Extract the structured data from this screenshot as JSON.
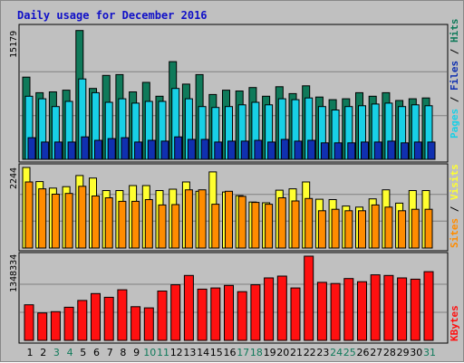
{
  "title": "Daily usage for December 2016",
  "colors": {
    "hits": "#0f7a5a",
    "files": "#18d0e6",
    "pages": "#1030b0",
    "visits": "#ffff30",
    "sites": "#ff8c00",
    "kbytes": "#ff1010",
    "weekend": "#0f7a5a",
    "weekday": "#000000",
    "title": "#1010c8"
  },
  "panels": {
    "top": {
      "max_label": "15179",
      "label_parts": [
        "Pages",
        " / ",
        "Files",
        " / ",
        "Hits"
      ]
    },
    "middle": {
      "max_label": "2244",
      "label_parts": [
        "Sites",
        " / ",
        "Visits"
      ]
    },
    "bottom": {
      "max_label": "1348334",
      "label_parts": [
        "KBytes"
      ]
    }
  },
  "chart_data": {
    "type": "bar",
    "title": "Daily usage for December 2016",
    "categories": [
      "1",
      "2",
      "3",
      "4",
      "5",
      "6",
      "7",
      "8",
      "9",
      "10",
      "11",
      "12",
      "13",
      "14",
      "15",
      "16",
      "17",
      "18",
      "19",
      "20",
      "21",
      "22",
      "23",
      "24",
      "25",
      "26",
      "27",
      "28",
      "29",
      "30",
      "31"
    ],
    "weekend_days": [
      "3",
      "4",
      "10",
      "11",
      "17",
      "18",
      "24",
      "25",
      "31"
    ],
    "panels": [
      {
        "name": "Hits / Files / Pages",
        "y_max": 15179,
        "series": [
          {
            "name": "Hits",
            "values": [
              9500,
              7700,
              7800,
              8000,
              14900,
              8200,
              9700,
              9800,
              7800,
              8900,
              7300,
              11300,
              8700,
              9800,
              7500,
              8000,
              7900,
              8300,
              7300,
              8400,
              7600,
              8500,
              7200,
              6900,
              7000,
              7700,
              7300,
              7700,
              6800,
              7000,
              7100
            ]
          },
          {
            "name": "Files",
            "values": [
              7300,
              7000,
              6100,
              6700,
              9300,
              7700,
              6600,
              7000,
              6500,
              6700,
              6700,
              8200,
              7000,
              6100,
              6000,
              6100,
              6300,
              6600,
              6300,
              7000,
              6900,
              7100,
              6100,
              5700,
              6100,
              6200,
              6400,
              6500,
              6100,
              6300,
              6200
            ]
          },
          {
            "name": "Pages",
            "values": [
              2500,
              2000,
              2000,
              2000,
              2600,
              2200,
              2400,
              2500,
              2000,
              2200,
              2100,
              2600,
              2300,
              2300,
              2000,
              2100,
              2100,
              2200,
              2000,
              2300,
              2100,
              2200,
              1900,
              1900,
              1900,
              2000,
              2000,
              2100,
              1900,
              2000,
              2000
            ]
          }
        ]
      },
      {
        "name": "Visits / Sites",
        "y_max": 2244,
        "series": [
          {
            "name": "Visits",
            "values": [
              2244,
              1850,
              1670,
              1710,
              2020,
              1950,
              1600,
              1600,
              1740,
              1740,
              1600,
              1640,
              1840,
              1580,
              2120,
              1560,
              1460,
              1280,
              1260,
              1610,
              1650,
              1840,
              1360,
              1350,
              1170,
              1140,
              1370,
              1620,
              1250,
              1600,
              1600
            ]
          },
          {
            "name": "Sites",
            "values": [
              1840,
              1650,
              1500,
              1520,
              1720,
              1450,
              1400,
              1300,
              1300,
              1350,
              1200,
              1210,
              1620,
              1620,
              1220,
              1580,
              1440,
              1270,
              1220,
              1400,
              1310,
              1380,
              1040,
              1080,
              1040,
              1040,
              1200,
              1140,
              1040,
              1080,
              1080
            ]
          }
        ]
      },
      {
        "name": "KBytes",
        "y_max": 1348334,
        "series": [
          {
            "name": "KBytes",
            "values": [
              570000,
              440000,
              460000,
              530000,
              640000,
              750000,
              690000,
              810000,
              540000,
              520000,
              790000,
              890000,
              1040000,
              820000,
              840000,
              880000,
              780000,
              890000,
              1000000,
              1030000,
              840000,
              1348334,
              930000,
              910000,
              990000,
              940000,
              1050000,
              1040000,
              1000000,
              980000,
              1100000
            ]
          }
        ]
      }
    ]
  }
}
